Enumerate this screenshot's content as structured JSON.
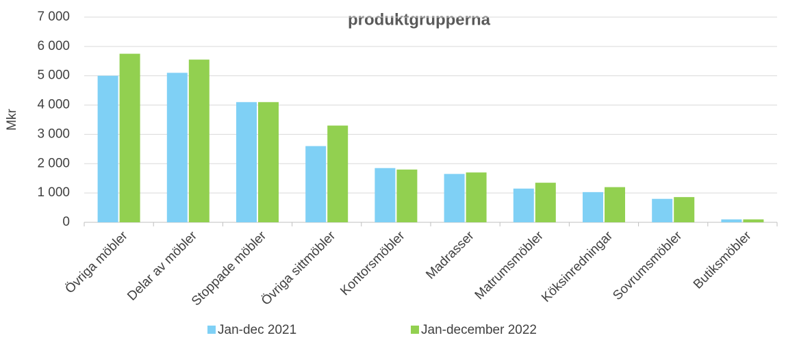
{
  "chart_data": {
    "type": "bar",
    "title": "produktgrupperna",
    "y_label": "Mkr",
    "categories": [
      "Övriga möbler",
      "Delar av möbler",
      "Stoppade möbler",
      "Övriga sittmöbler",
      "Kontorsmöbler",
      "Madrasser",
      "Matrumsmöbler",
      "Köksinredningar",
      "Sovrumsmöbler",
      "Butiksmöbler"
    ],
    "series": [
      {
        "name": "Jan-dec 2021",
        "color": "#7fd0f5",
        "values": [
          5000,
          5100,
          4100,
          2600,
          1850,
          1650,
          1150,
          1030,
          800,
          100
        ]
      },
      {
        "name": "Jan-december 2022",
        "color": "#92d050",
        "values": [
          5750,
          5550,
          4100,
          3300,
          1800,
          1700,
          1350,
          1200,
          860,
          100
        ]
      }
    ],
    "ylim": [
      0,
      7000
    ],
    "yticks": [
      0,
      {
        "value": 1000,
        "label": "1 000"
      },
      {
        "value": 2000,
        "label": "2 000"
      },
      {
        "value": 3000,
        "label": "3 000"
      },
      {
        "value": 4000,
        "label": "4 000"
      },
      {
        "value": 5000,
        "label": "5 000"
      },
      {
        "value": 6000,
        "label": "6 000"
      },
      {
        "value": 7000,
        "label": "7 000"
      }
    ],
    "grid": true,
    "legend": "bottom"
  }
}
